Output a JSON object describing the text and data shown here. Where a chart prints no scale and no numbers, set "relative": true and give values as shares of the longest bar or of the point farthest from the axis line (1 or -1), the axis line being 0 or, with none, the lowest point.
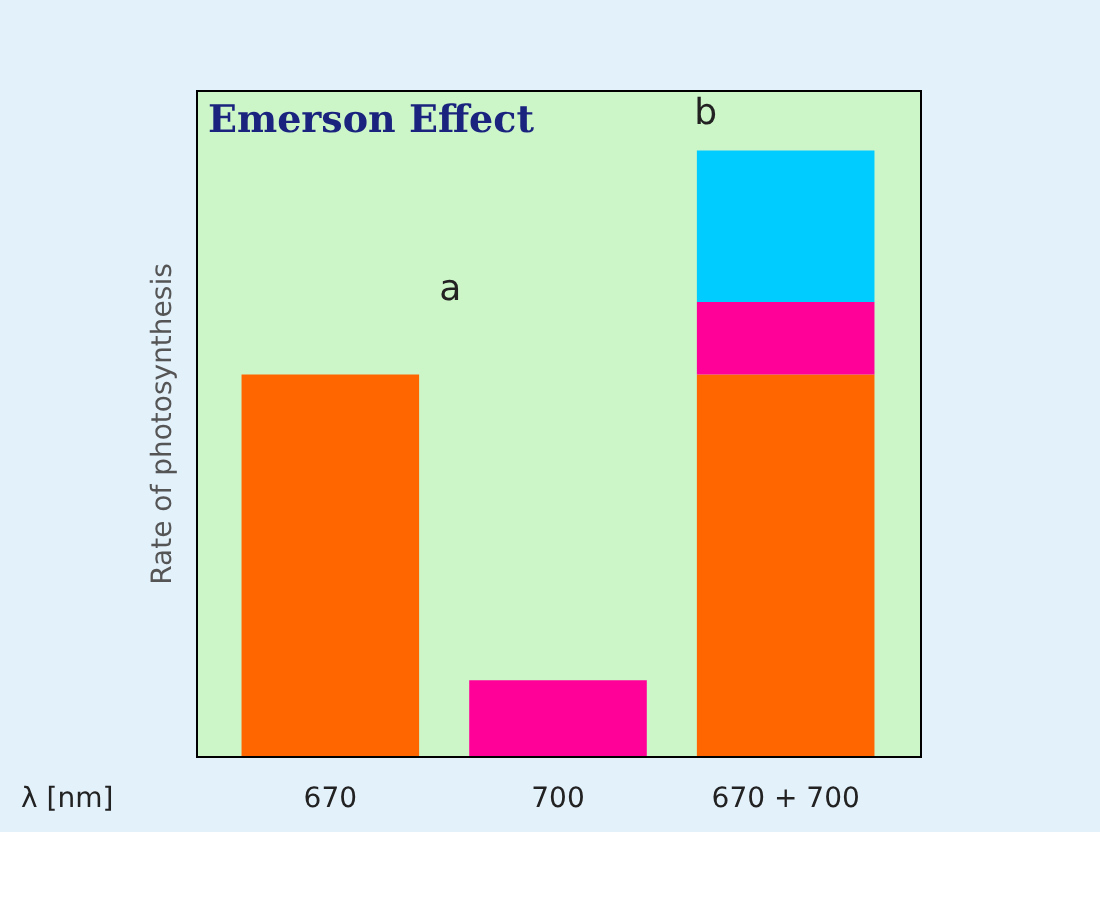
{
  "chart_data": {
    "type": "bar",
    "title": "Emerson Effect",
    "xlabel": "λ [nm]",
    "ylabel": "Rate of photosynthesis",
    "categories": [
      "670",
      "700",
      "670 + 700"
    ],
    "relative": true,
    "stacked": true,
    "series": [
      {
        "color": "#ff6600",
        "values": [
          0.63,
          null,
          0.63
        ]
      },
      {
        "color": "#ff0099",
        "values": [
          null,
          0.125,
          0.12
        ]
      },
      {
        "color": "#00ccff",
        "values": [
          null,
          null,
          0.25
        ]
      }
    ],
    "annotations": [
      "a",
      "b"
    ]
  }
}
